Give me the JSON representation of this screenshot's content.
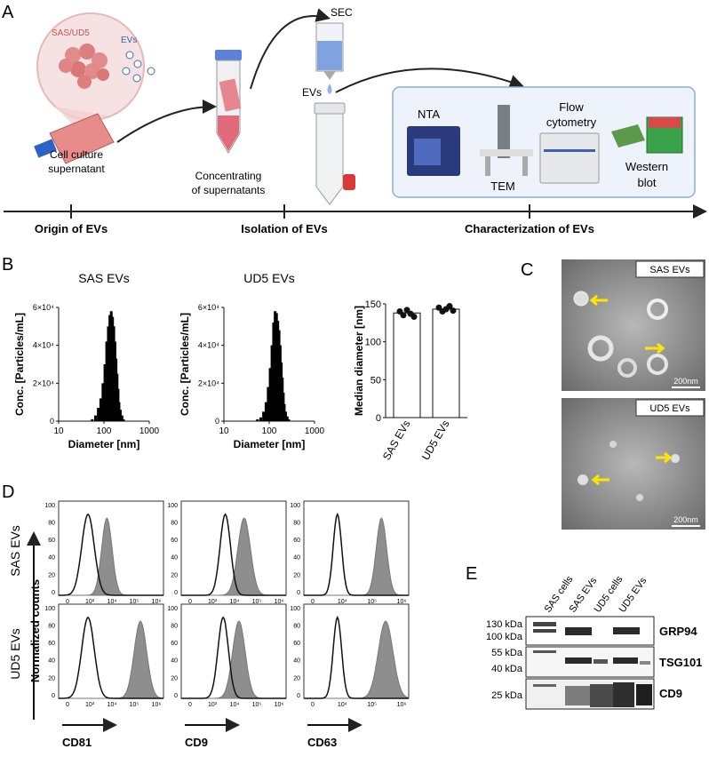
{
  "panelA": {
    "letter": "A",
    "cell_label": "SAS/UD5",
    "evs_bubble": "EVs",
    "cell_culture": [
      "Cell culture",
      "supernatant"
    ],
    "concentrating": [
      "Concentrating",
      "of supernatants"
    ],
    "sec": "SEC",
    "evs_drop": "EVs",
    "nta": "NTA",
    "tem": "TEM",
    "flow": [
      "Flow",
      "cytometry"
    ],
    "western": [
      "Western",
      "blot"
    ],
    "timeline": [
      "Origin of EVs",
      "Isolation of EVs",
      "Characterization of EVs"
    ]
  },
  "panelB": {
    "letter": "B",
    "histograms": [
      {
        "title": "SAS EVs",
        "ylabel": "Conc. [Particles/mL]",
        "xlabel": "Diameter [nm]",
        "yticks": [
          "0",
          "2×10⁴",
          "4×10⁴",
          "6×10⁴"
        ],
        "xticks": [
          "10",
          "100",
          "1000"
        ]
      },
      {
        "title": "UD5 EVs",
        "ylabel": "Conc. [Particles/mL]",
        "xlabel": "Diameter [nm]",
        "yticks": [
          "0",
          "2×10⁴",
          "4×10⁴",
          "6×10⁴"
        ],
        "xticks": [
          "10",
          "100",
          "1000"
        ]
      }
    ],
    "median": {
      "ylabel": "Median diameter [nm]",
      "yticks": [
        "0",
        "50",
        "100",
        "150"
      ],
      "categories": [
        "SAS EVs",
        "UD5 EVs"
      ]
    }
  },
  "panelC": {
    "letter": "C",
    "labels": [
      "SAS EVs",
      "UD5 EVs"
    ],
    "scale": "200nm"
  },
  "panelD": {
    "letter": "D",
    "rows": [
      "SAS EVs",
      "UD5 EVs"
    ],
    "ylabel": "Normalized counts",
    "markers": [
      "CD81",
      "CD9",
      "CD63"
    ],
    "yticks": [
      "0",
      "20",
      "40",
      "60",
      "80",
      "100"
    ],
    "xticks": [
      "0",
      "10³",
      "10⁴",
      "10⁵",
      "10⁶"
    ],
    "xticks_cd63": [
      "0",
      "10⁴",
      "10⁵",
      "10⁶"
    ]
  },
  "panelE": {
    "letter": "E",
    "lanes": [
      "SAS cells",
      "SAS EVs",
      "UD5 cells",
      "UD5 EVs"
    ],
    "kda": [
      "130 kDa",
      "100 kDa",
      "55 kDa",
      "40 kDa",
      "25 kDa"
    ],
    "proteins": [
      "GRP94",
      "TSG101",
      "CD9"
    ]
  },
  "chart_data": [
    {
      "type": "bar",
      "title": "SAS EVs",
      "xlabel": "Diameter [nm]",
      "ylabel": "Conc. [Particles/mL]",
      "x_scale": "log",
      "xlim": [
        10,
        1000
      ],
      "ylim": [
        0,
        60000
      ],
      "x": [
        55,
        65,
        75,
        85,
        95,
        105,
        115,
        125,
        135,
        145,
        155,
        165,
        175,
        185,
        195,
        205,
        215,
        230,
        250,
        270
      ],
      "values": [
        1000,
        3000,
        7000,
        12000,
        20000,
        30000,
        42000,
        50000,
        56000,
        58000,
        55000,
        50000,
        42000,
        33000,
        25000,
        17000,
        10000,
        6000,
        3000,
        1000
      ]
    },
    {
      "type": "bar",
      "title": "UD5 EVs",
      "xlabel": "Diameter [nm]",
      "ylabel": "Conc. [Particles/mL]",
      "x_scale": "log",
      "xlim": [
        10,
        1000
      ],
      "ylim": [
        0,
        60000
      ],
      "x": [
        55,
        65,
        75,
        85,
        95,
        105,
        115,
        125,
        135,
        145,
        155,
        165,
        175,
        185,
        195,
        205,
        215,
        230,
        250,
        270
      ],
      "values": [
        1000,
        2000,
        5000,
        10000,
        18000,
        28000,
        40000,
        52000,
        58000,
        57000,
        53000,
        48000,
        40000,
        31000,
        23000,
        15000,
        9000,
        5000,
        2500,
        1000
      ]
    },
    {
      "type": "bar",
      "ylabel": "Median diameter [nm]",
      "ylim": [
        0,
        150
      ],
      "categories": [
        "SAS EVs",
        "UD5 EVs"
      ],
      "values": [
        138,
        143
      ],
      "points": [
        [
          140,
          135,
          142,
          137,
          133
        ],
        [
          145,
          140,
          143,
          147,
          141
        ]
      ]
    }
  ]
}
